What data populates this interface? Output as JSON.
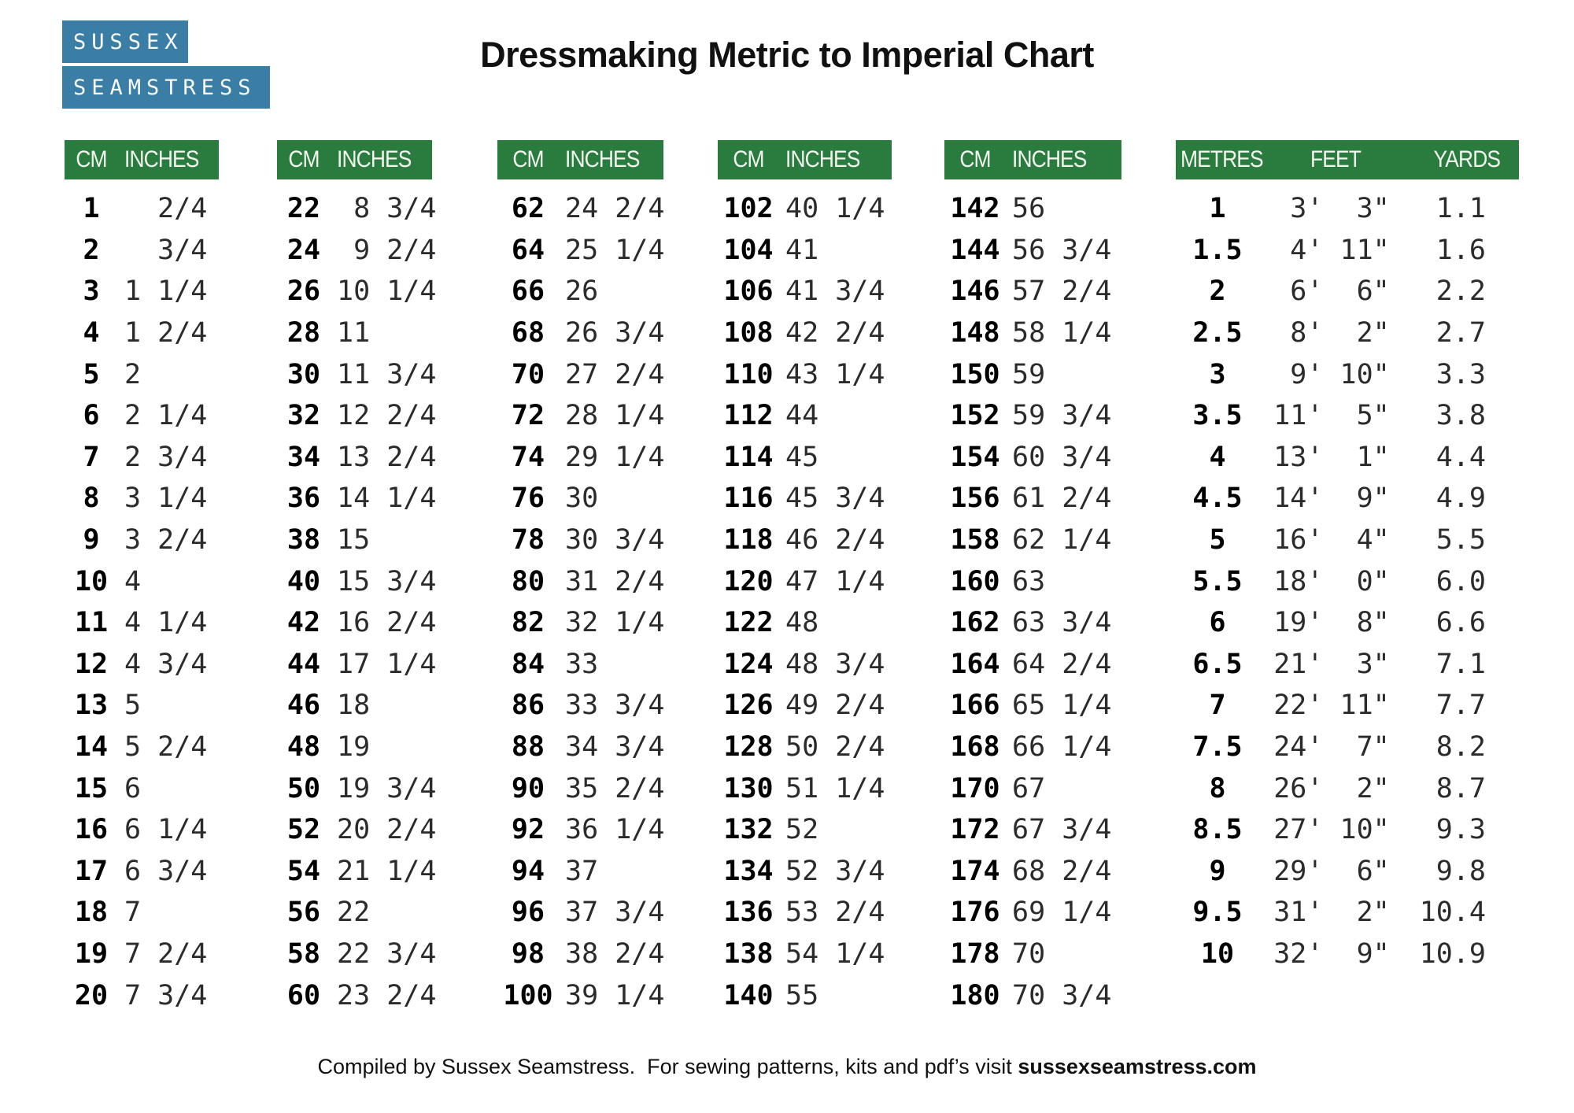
{
  "logo": {
    "line1": "SUSSEX",
    "line2": "SEAMSTRESS"
  },
  "title": "Dressmaking Metric to Imperial Chart",
  "colors": {
    "header_green": "#2a7b3e",
    "logo_blue": "#3a7ea6"
  },
  "footer": {
    "text": "Compiled by Sussex Seamstress.  For sewing patterns, kits and pdf’s visit ",
    "website": "sussexseamstress.com"
  },
  "chart_data": [
    {
      "type": "table",
      "columns": [
        "CM",
        "INCHES"
      ],
      "rows": [
        [
          "1",
          "2/4"
        ],
        [
          "2",
          "3/4"
        ],
        [
          "3",
          "1 1/4"
        ],
        [
          "4",
          "1 2/4"
        ],
        [
          "5",
          "2"
        ],
        [
          "6",
          "2 1/4"
        ],
        [
          "7",
          "2 3/4"
        ],
        [
          "8",
          "3 1/4"
        ],
        [
          "9",
          "3 2/4"
        ],
        [
          "10",
          "4"
        ],
        [
          "11",
          "4 1/4"
        ],
        [
          "12",
          "4 3/4"
        ],
        [
          "13",
          "5"
        ],
        [
          "14",
          "5 2/4"
        ],
        [
          "15",
          "6"
        ],
        [
          "16",
          "6 1/4"
        ],
        [
          "17",
          "6 3/4"
        ],
        [
          "18",
          "7"
        ],
        [
          "19",
          "7 2/4"
        ],
        [
          "20",
          "7 3/4"
        ]
      ]
    },
    {
      "type": "table",
      "columns": [
        "CM",
        "INCHES"
      ],
      "rows": [
        [
          "22",
          "8 3/4"
        ],
        [
          "24",
          "9 2/4"
        ],
        [
          "26",
          "10 1/4"
        ],
        [
          "28",
          "11"
        ],
        [
          "30",
          "11 3/4"
        ],
        [
          "32",
          "12 2/4"
        ],
        [
          "34",
          "13 2/4"
        ],
        [
          "36",
          "14 1/4"
        ],
        [
          "38",
          "15"
        ],
        [
          "40",
          "15 3/4"
        ],
        [
          "42",
          "16 2/4"
        ],
        [
          "44",
          "17 1/4"
        ],
        [
          "46",
          "18"
        ],
        [
          "48",
          "19"
        ],
        [
          "50",
          "19 3/4"
        ],
        [
          "52",
          "20 2/4"
        ],
        [
          "54",
          "21 1/4"
        ],
        [
          "56",
          "22"
        ],
        [
          "58",
          "22 3/4"
        ],
        [
          "60",
          "23 2/4"
        ]
      ]
    },
    {
      "type": "table",
      "columns": [
        "CM",
        "INCHES"
      ],
      "rows": [
        [
          "62",
          "24 2/4"
        ],
        [
          "64",
          "25 1/4"
        ],
        [
          "66",
          "26"
        ],
        [
          "68",
          "26 3/4"
        ],
        [
          "70",
          "27 2/4"
        ],
        [
          "72",
          "28 1/4"
        ],
        [
          "74",
          "29 1/4"
        ],
        [
          "76",
          "30"
        ],
        [
          "78",
          "30 3/4"
        ],
        [
          "80",
          "31 2/4"
        ],
        [
          "82",
          "32 1/4"
        ],
        [
          "84",
          "33"
        ],
        [
          "86",
          "33 3/4"
        ],
        [
          "88",
          "34 3/4"
        ],
        [
          "90",
          "35 2/4"
        ],
        [
          "92",
          "36 1/4"
        ],
        [
          "94",
          "37"
        ],
        [
          "96",
          "37 3/4"
        ],
        [
          "98",
          "38 2/4"
        ],
        [
          "100",
          "39 1/4"
        ]
      ]
    },
    {
      "type": "table",
      "columns": [
        "CM",
        "INCHES"
      ],
      "rows": [
        [
          "102",
          "40 1/4"
        ],
        [
          "104",
          "41"
        ],
        [
          "106",
          "41 3/4"
        ],
        [
          "108",
          "42 2/4"
        ],
        [
          "110",
          "43 1/4"
        ],
        [
          "112",
          "44"
        ],
        [
          "114",
          "45"
        ],
        [
          "116",
          "45 3/4"
        ],
        [
          "118",
          "46 2/4"
        ],
        [
          "120",
          "47 1/4"
        ],
        [
          "122",
          "48"
        ],
        [
          "124",
          "48 3/4"
        ],
        [
          "126",
          "49 2/4"
        ],
        [
          "128",
          "50 2/4"
        ],
        [
          "130",
          "51 1/4"
        ],
        [
          "132",
          "52"
        ],
        [
          "134",
          "52 3/4"
        ],
        [
          "136",
          "53 2/4"
        ],
        [
          "138",
          "54 1/4"
        ],
        [
          "140",
          "55"
        ]
      ]
    },
    {
      "type": "table",
      "columns": [
        "CM",
        "INCHES"
      ],
      "rows": [
        [
          "142",
          "56"
        ],
        [
          "144",
          "56 3/4"
        ],
        [
          "146",
          "57 2/4"
        ],
        [
          "148",
          "58 1/4"
        ],
        [
          "150",
          "59"
        ],
        [
          "152",
          "59 3/4"
        ],
        [
          "154",
          "60 3/4"
        ],
        [
          "156",
          "61 2/4"
        ],
        [
          "158",
          "62 1/4"
        ],
        [
          "160",
          "63"
        ],
        [
          "162",
          "63 3/4"
        ],
        [
          "164",
          "64 2/4"
        ],
        [
          "166",
          "65 1/4"
        ],
        [
          "168",
          "66 1/4"
        ],
        [
          "170",
          "67"
        ],
        [
          "172",
          "67 3/4"
        ],
        [
          "174",
          "68 2/4"
        ],
        [
          "176",
          "69 1/4"
        ],
        [
          "178",
          "70"
        ],
        [
          "180",
          "70 3/4"
        ]
      ]
    },
    {
      "type": "table",
      "columns": [
        "METRES",
        "FEET",
        "YARDS"
      ],
      "rows": [
        [
          "1",
          "3' 3\"",
          "1.1"
        ],
        [
          "1.5",
          "4' 11\"",
          "1.6"
        ],
        [
          "2",
          "6' 6\"",
          "2.2"
        ],
        [
          "2.5",
          "8' 2\"",
          "2.7"
        ],
        [
          "3",
          "9' 10\"",
          "3.3"
        ],
        [
          "3.5",
          "11' 5\"",
          "3.8"
        ],
        [
          "4",
          "13' 1\"",
          "4.4"
        ],
        [
          "4.5",
          "14' 9\"",
          "4.9"
        ],
        [
          "5",
          "16' 4\"",
          "5.5"
        ],
        [
          "5.5",
          "18' 0\"",
          "6.0"
        ],
        [
          "6",
          "19' 8\"",
          "6.6"
        ],
        [
          "6.5",
          "21' 3\"",
          "7.1"
        ],
        [
          "7",
          "22' 11\"",
          "7.7"
        ],
        [
          "7.5",
          "24' 7\"",
          "8.2"
        ],
        [
          "8",
          "26' 2\"",
          "8.7"
        ],
        [
          "8.5",
          "27' 10\"",
          "9.3"
        ],
        [
          "9",
          "29' 6\"",
          "9.8"
        ],
        [
          "9.5",
          "31' 2\"",
          "10.4"
        ],
        [
          "10",
          "32' 9\"",
          "10.9"
        ]
      ]
    }
  ]
}
